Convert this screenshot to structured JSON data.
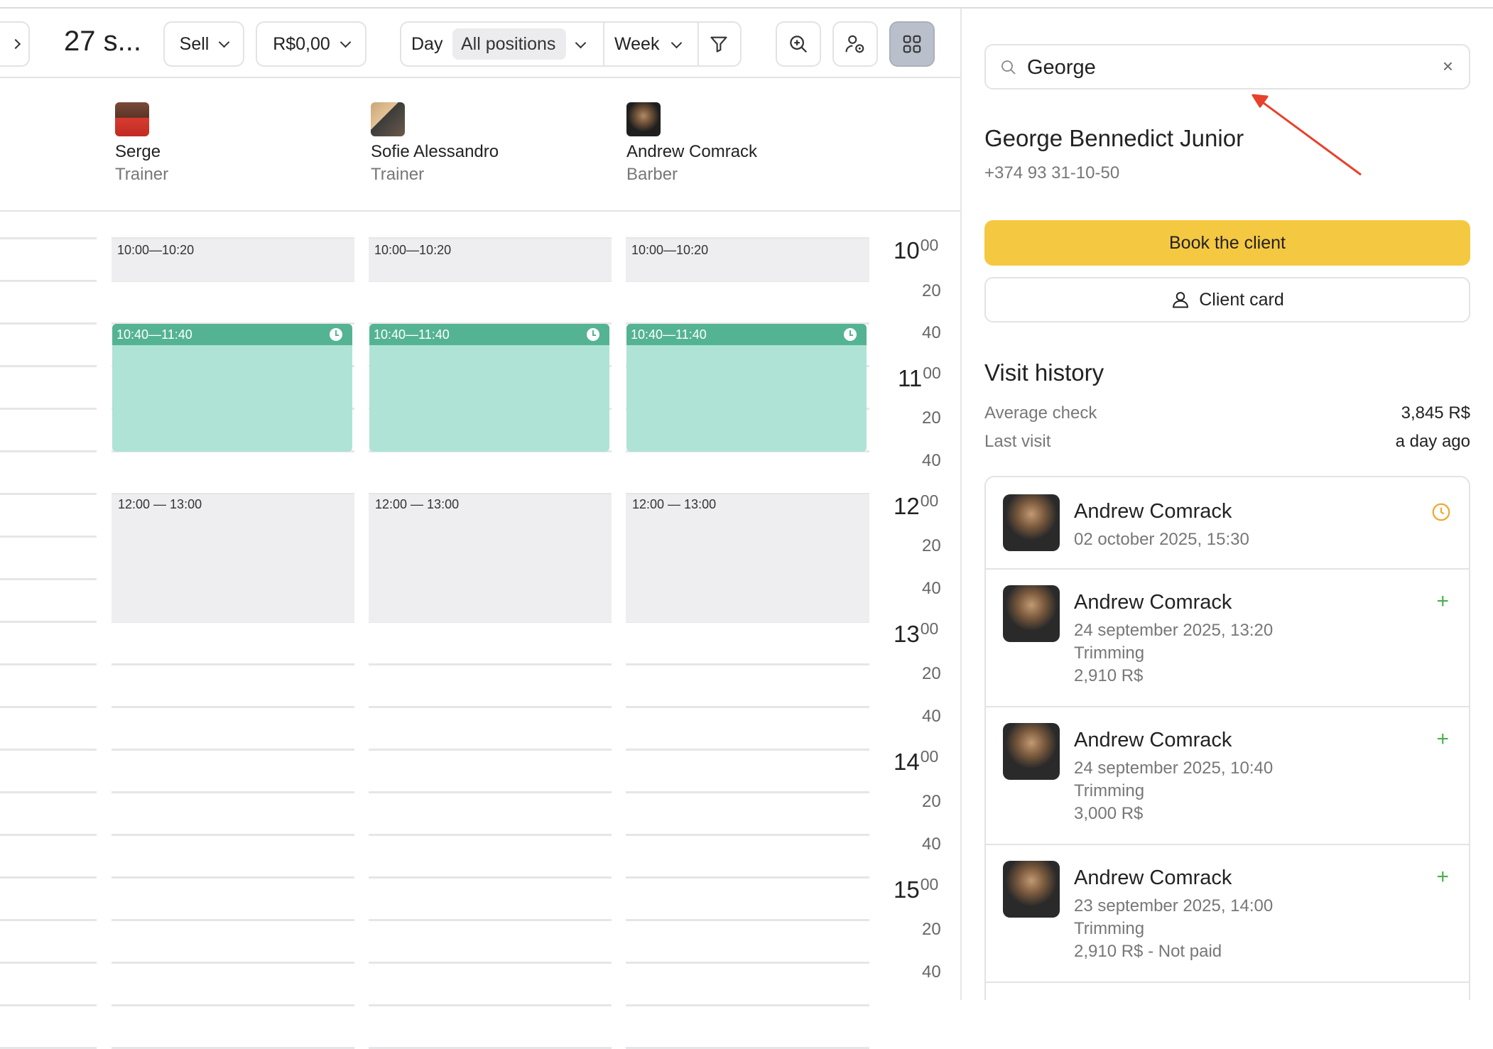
{
  "toolbar": {
    "nav_prev_icon": "chevron-right-icon",
    "date_title": "27 s...",
    "sell_label": "Sell",
    "amount_label": "R$0,00",
    "day_label": "Day",
    "positions_label": "All positions",
    "week_label": "Week",
    "filter_icon": "filter-icon",
    "zoom_icon": "zoom-in-icon",
    "staff_settings_icon": "user-settings-icon",
    "grid_view_icon": "grid-icon"
  },
  "staff": [
    {
      "name": "Serge",
      "role": "Trainer"
    },
    {
      "name": "Sofie Alessandro",
      "role": "Trainer"
    },
    {
      "name": "Andrew Comrack",
      "role": "Barber"
    }
  ],
  "slots": {
    "slot1": "10:00—10:20",
    "slot2": "10:40—11:40",
    "slot3": "12:00 — 13:00"
  },
  "timeline": {
    "hours": [
      "10",
      "11",
      "12",
      "13",
      "14",
      "15"
    ],
    "hour_suffix": "00",
    "minutes": [
      "20",
      "40"
    ]
  },
  "panel": {
    "search_value": "George",
    "client_name": "George Bennedict Junior",
    "client_phone": "+374 93 31-10-50",
    "book_label": "Book the client",
    "card_label": "Client card",
    "history_title": "Visit history",
    "avg_check_label": "Average check",
    "avg_check_value": "3,845 R$",
    "last_visit_label": "Last visit",
    "last_visit_value": "a day ago",
    "visits": [
      {
        "master": "Andrew Comrack",
        "date": "02 october 2025, 15:30",
        "status_icon": "clock-icon"
      },
      {
        "master": "Andrew Comrack",
        "date": "24 september 2025, 13:20",
        "service": "Trimming",
        "price": "2,910 R$",
        "status_icon": "plus-icon"
      },
      {
        "master": "Andrew Comrack",
        "date": "24 september 2025, 10:40",
        "service": "Trimming",
        "price": "3,000 R$",
        "status_icon": "plus-icon"
      },
      {
        "master": "Andrew Comrack",
        "date": "23 september 2025, 14:00",
        "service": "Trimming",
        "price": "2,910 R$ - Not paid",
        "status_icon": "plus-icon"
      }
    ]
  },
  "colors": {
    "accent_yellow": "#f5c842",
    "green_header": "#54b393",
    "green_body": "#aee3d5",
    "annotation_arrow": "#e8402a"
  }
}
